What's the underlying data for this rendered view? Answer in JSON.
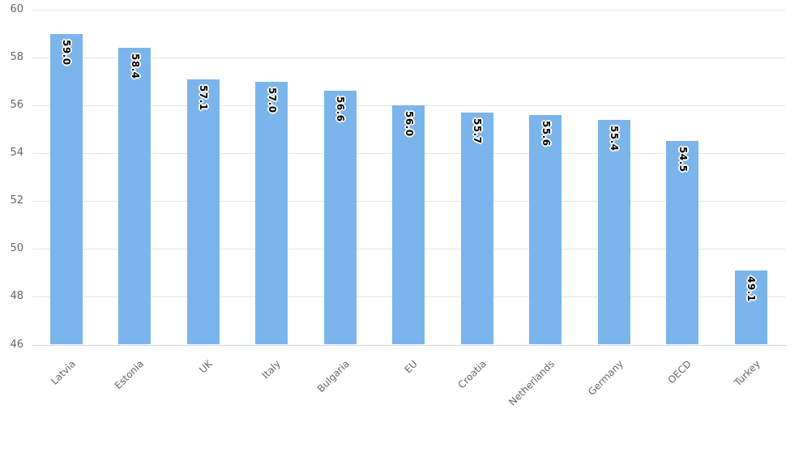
{
  "chart_data": {
    "type": "bar",
    "title": "",
    "xlabel": "",
    "ylabel": "",
    "categories": [
      "Latvia",
      "Estonia",
      "UK",
      "Italy",
      "Bulgaria",
      "EU",
      "Croatia",
      "Netherlands",
      "Germany",
      "OECD",
      "Turkey"
    ],
    "values": [
      59.0,
      58.4,
      57.1,
      57.0,
      56.6,
      56.0,
      55.7,
      55.6,
      55.4,
      54.5,
      49.1
    ],
    "value_labels": [
      "59.0",
      "58.4",
      "57.1",
      "57.0",
      "56.6",
      "56.0",
      "55.7",
      "55.6",
      "55.4",
      "54.5",
      "49.1"
    ],
    "ylim": [
      46,
      60
    ],
    "yticks": [
      46,
      48,
      50,
      52,
      54,
      56,
      58,
      60
    ],
    "grid": true,
    "legend": false,
    "x_label_rotation": -45,
    "data_label_rotation": 90,
    "colors": {
      "bar": "#7cb5ec",
      "grid_line": "#e6e6e6",
      "axis_line": "#ccd6eb",
      "tick_label": "#666666",
      "data_label": "#000000",
      "data_label_outline": "#ffffff",
      "background": "#ffffff"
    }
  }
}
